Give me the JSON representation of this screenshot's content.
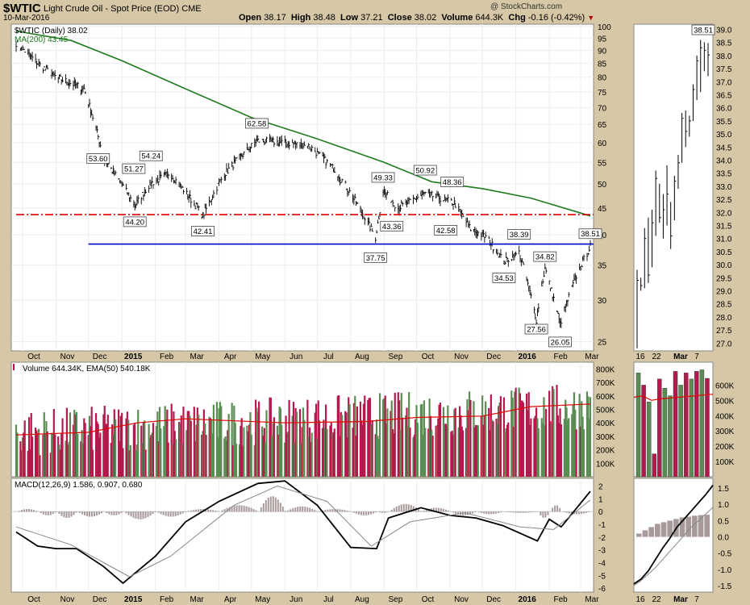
{
  "header": {
    "symbol": "$WTIC",
    "description": "Light Crude Oil - Spot Price (EOD)",
    "exchange": "CME",
    "date": "10-Mar-2016",
    "watermark": "@ StockCharts.com",
    "open_label": "Open",
    "open": "38.17",
    "high_label": "High",
    "high": "38.48",
    "low_label": "Low",
    "low": "37.21",
    "close_label": "Close",
    "close": "38.02",
    "volume_label": "Volume",
    "volume": "644.3K",
    "chg_label": "Chg",
    "chg": "-0.16 (-0.42%)"
  },
  "colors": {
    "price": "#000000",
    "ma200": "#1e7a1e",
    "resistance": "#e00000",
    "support": "#0000c8",
    "vol_up": "#5b8c54",
    "vol_down": "#b4194c",
    "ema": "#e00000",
    "macd": "#000000",
    "signal": "#888888",
    "hist": "#a89a9a"
  },
  "chart_data": [
    {
      "type": "line",
      "panel": "price",
      "legend": [
        "$WTIC (Daily) 38.02",
        "MA(200) 43.45"
      ],
      "x_ticks": [
        "Oct",
        "Nov",
        "Dec",
        "2015",
        "Feb",
        "Mar",
        "Apr",
        "May",
        "Jun",
        "Jul",
        "Aug",
        "Sep",
        "Oct",
        "Nov",
        "Dec",
        "2016",
        "Feb",
        "Mar"
      ],
      "y_ticks": [
        25,
        30,
        35,
        40,
        45,
        50,
        55,
        60,
        65,
        70,
        75,
        80,
        85,
        90,
        95,
        100
      ],
      "ylim": [
        24,
        101
      ],
      "y_scale": "log",
      "series": [
        {
          "name": "$WTIC (Daily) 38.02",
          "dates": [
            "2014-09-25",
            "2014-10-15",
            "2014-11-01",
            "2014-11-27",
            "2014-12-15",
            "2015-01-13",
            "2015-01-27",
            "2015-02-14",
            "2015-03-17",
            "2015-04-05",
            "2015-05-06",
            "2015-06-01",
            "2015-06-24",
            "2015-07-18",
            "2015-08-24",
            "2015-08-31",
            "2015-09-14",
            "2015-10-09",
            "2015-11-05",
            "2015-11-20",
            "2015-12-05",
            "2015-12-21",
            "2016-01-04",
            "2016-01-20",
            "2016-01-28",
            "2016-02-11",
            "2016-02-25",
            "2016-03-10"
          ],
          "values": [
            93,
            85,
            80,
            76,
            56,
            45.5,
            50,
            52.5,
            43.5,
            52,
            60.5,
            60,
            59,
            53,
            39.5,
            48.5,
            45,
            48,
            46,
            41,
            39.5,
            35.5,
            37,
            27.5,
            34.5,
            27,
            33,
            38
          ]
        },
        {
          "name": "MA(200) 43.45",
          "dates": [
            "2014-09-25",
            "2014-11-15",
            "2015-01-01",
            "2015-03-01",
            "2015-05-01",
            "2015-07-01",
            "2015-09-01",
            "2015-10-15",
            "2015-12-01",
            "2016-01-15",
            "2016-03-10"
          ],
          "values": [
            98,
            94,
            86,
            76,
            67,
            61,
            55,
            50.5,
            49,
            47,
            43.45
          ]
        }
      ],
      "annotations": [
        {
          "label": "53.60",
          "date": "2014-12-10",
          "value": 53.6
        },
        {
          "label": "51.27",
          "date": "2015-01-12",
          "value": 51.27
        },
        {
          "label": "54.24",
          "date": "2015-01-28",
          "value": 54.24
        },
        {
          "label": "44.20",
          "date": "2015-01-13",
          "value": 44.2
        },
        {
          "label": "42.41",
          "date": "2015-03-17",
          "value": 42.41
        },
        {
          "label": "62.58",
          "date": "2015-05-06",
          "value": 62.58
        },
        {
          "label": "49.33",
          "date": "2015-08-31",
          "value": 49.33
        },
        {
          "label": "43.36",
          "date": "2015-09-08",
          "value": 43.36
        },
        {
          "label": "37.75",
          "date": "2015-08-24",
          "value": 37.75
        },
        {
          "label": "50.92",
          "date": "2015-10-09",
          "value": 50.92
        },
        {
          "label": "48.36",
          "date": "2015-11-03",
          "value": 48.36
        },
        {
          "label": "42.58",
          "date": "2015-10-28",
          "value": 42.58
        },
        {
          "label": "34.53",
          "date": "2015-12-21",
          "value": 34.53
        },
        {
          "label": "38.39",
          "date": "2016-01-04",
          "value": 38.39
        },
        {
          "label": "34.82",
          "date": "2016-01-28",
          "value": 34.82
        },
        {
          "label": "27.56",
          "date": "2016-01-20",
          "value": 27.56
        },
        {
          "label": "26.05",
          "date": "2016-02-11",
          "value": 26.05
        },
        {
          "label": "38.51",
          "date": "2016-03-10",
          "value": 38.51
        }
      ],
      "hlines": [
        {
          "value": 43.7,
          "style": "dash-dot",
          "start": "2014-09-25"
        },
        {
          "value": 38.4,
          "style": "solid",
          "start": "2014-12-01"
        }
      ]
    },
    {
      "type": "bar",
      "panel": "volume",
      "legend": [
        "Volume 644.34K, EMA(50) 540.18K"
      ],
      "y_ticks": [
        "100K",
        "200K",
        "300K",
        "400K",
        "500K",
        "600K",
        "700K",
        "800K"
      ],
      "ylim": [
        0,
        850000
      ],
      "ema_dates": [
        "2014-09-25",
        "2014-12-01",
        "2015-01-15",
        "2015-03-01",
        "2015-06-01",
        "2015-08-15",
        "2015-10-01",
        "2015-12-01",
        "2016-01-15",
        "2016-03-10"
      ],
      "ema_values": [
        310000,
        330000,
        400000,
        430000,
        400000,
        410000,
        440000,
        450000,
        520000,
        540180
      ]
    },
    {
      "type": "line",
      "panel": "macd",
      "legend": [
        "MACD(12,26,9) 1.586, 0.907, 0.680"
      ],
      "y_ticks": [
        -6,
        -5,
        -4,
        -3,
        -2,
        -1,
        0,
        1,
        2
      ],
      "ylim": [
        -6.3,
        2.6
      ],
      "series": [
        {
          "name": "MACD(12,26,9) 1.586",
          "dates": [
            "2014-09-25",
            "2014-10-15",
            "2014-11-01",
            "2014-11-20",
            "2014-12-15",
            "2015-01-02",
            "2015-02-01",
            "2015-03-01",
            "2015-04-01",
            "2015-05-07",
            "2015-06-01",
            "2015-07-01",
            "2015-08-01",
            "2015-08-25",
            "2015-09-05",
            "2015-10-05",
            "2015-11-01",
            "2015-11-25",
            "2015-12-20",
            "2016-01-21",
            "2016-02-01",
            "2016-02-12",
            "2016-03-10"
          ],
          "values": [
            -1.6,
            -2.7,
            -2.9,
            -2.9,
            -4.3,
            -5.6,
            -3.5,
            -0.8,
            0.8,
            2.2,
            2.4,
            0.5,
            -2.8,
            -2.9,
            -0.5,
            0.3,
            -0.3,
            -0.5,
            -1.1,
            -2.3,
            -0.6,
            -1.2,
            1.586
          ]
        },
        {
          "name": "0.907",
          "dates": [
            "2014-09-25",
            "2014-11-15",
            "2015-01-08",
            "2015-02-15",
            "2015-04-15",
            "2015-05-25",
            "2015-07-10",
            "2015-08-20",
            "2015-09-25",
            "2015-11-15",
            "2016-01-05",
            "2016-02-05",
            "2016-03-10"
          ],
          "values": [
            -1.2,
            -2.6,
            -5.1,
            -3.5,
            0.5,
            2.0,
            0.8,
            -2.7,
            -0.8,
            -0.1,
            -1.2,
            -1.4,
            0.907
          ]
        }
      ],
      "histogram_values": [
        0.2,
        -0.3,
        -0.5,
        -0.4,
        -0.3,
        -0.6,
        -0.4,
        0.2,
        0.5,
        1.2,
        0.4,
        0.2,
        -0.3,
        -0.1,
        0.6,
        0.3,
        -0.3,
        -0.2,
        -0.1,
        -0.5,
        0.5,
        -0.2,
        0.68
      ]
    }
  ],
  "inset": {
    "x_ticks": [
      "16",
      "22",
      "Mar",
      "7"
    ],
    "price_ticks": [
      "27.0",
      "27.5",
      "28.0",
      "28.5",
      "29.0",
      "29.5",
      "30.0",
      "30.5",
      "31.0",
      "31.5",
      "32.0",
      "32.5",
      "33.0",
      "33.5",
      "34.0",
      "34.5",
      "35.0",
      "35.5",
      "36.0",
      "36.5",
      "37.0",
      "37.5",
      "38.0",
      "38.5",
      "39.0"
    ],
    "price_ylim": [
      26.7,
      39.2
    ],
    "bars_high": [
      29.8,
      29.5,
      31.4,
      31.8,
      32.1,
      33.6,
      33.1,
      32.7,
      33.8,
      32.4,
      33.4,
      34.2,
      35.8,
      35.9,
      35.7,
      36.9,
      38.0,
      38.6,
      38.51,
      38.48
    ],
    "bars_low": [
      26.8,
      29.0,
      29.1,
      29.3,
      29.9,
      31.1,
      31.6,
      31.0,
      31.5,
      30.6,
      31.7,
      32.9,
      33.9,
      34.5,
      34.9,
      35.5,
      36.3,
      36.6,
      37.4,
      37.21
    ],
    "bars_close": [
      29.4,
      29.2,
      31.0,
      29.6,
      31.6,
      33.3,
      31.8,
      32.1,
      32.7,
      31.1,
      33.2,
      33.9,
      35.6,
      35.1,
      35.5,
      36.7,
      37.8,
      38.3,
      38.2,
      38.02
    ],
    "label": "38.51",
    "vol_ticks": [
      "100K",
      "200K",
      "300K",
      "400K",
      "500K",
      "600K"
    ],
    "vol_values": [
      680000,
      600000,
      490000,
      150000,
      640000,
      580000,
      530000,
      690000,
      600000,
      680000,
      640000,
      690000,
      700000,
      644340
    ],
    "vol_up": [
      true,
      false,
      true,
      false,
      false,
      true,
      true,
      false,
      true,
      false,
      true,
      false,
      true,
      false
    ],
    "vol_ema": [
      520000,
      530000,
      500000,
      510000,
      515000,
      520000,
      525000,
      530000,
      535000,
      540180
    ],
    "macd_ticks": [
      "-1.5",
      "-1.0",
      "-0.5",
      "0.0",
      "0.5",
      "1.0",
      "1.5"
    ],
    "macd_ylim": [
      -1.7,
      1.8
    ],
    "macd_line": [
      -1.45,
      -1.3,
      -1.05,
      -0.7,
      -0.35,
      -0.05,
      0.3,
      0.55,
      0.8,
      1.05,
      1.3,
      1.586
    ],
    "signal_line": [
      -1.5,
      -1.35,
      -1.15,
      -0.95,
      -0.7,
      -0.45,
      -0.2,
      0.05,
      0.3,
      0.5,
      0.7,
      0.907
    ],
    "hist_values": [
      0.1,
      0.2,
      0.3,
      0.4,
      0.45,
      0.5,
      0.55,
      0.6,
      0.62,
      0.65,
      0.67,
      0.68
    ]
  }
}
